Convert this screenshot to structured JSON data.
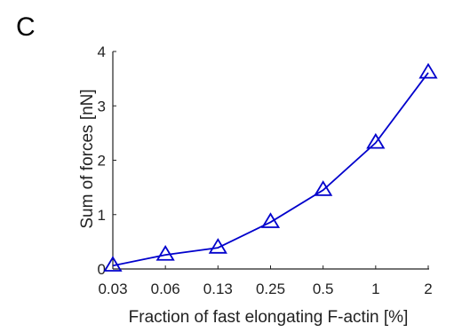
{
  "panel_label": "C",
  "chart_data": {
    "type": "line",
    "title": "",
    "xlabel": "Fraction of fast elongating F-actin [%]",
    "ylabel": "Sum of forces [nN]",
    "categories": [
      "0.03",
      "0.06",
      "0.13",
      "0.25",
      "0.5",
      "1",
      "2"
    ],
    "y_ticks": [
      "0",
      "1",
      "2",
      "3",
      "4"
    ],
    "ylim": [
      0,
      4
    ],
    "grid": false,
    "series": [
      {
        "values": [
          0.06,
          0.26,
          0.39,
          0.86,
          1.45,
          2.32,
          3.61
        ],
        "color": "#0000cc",
        "marker": "triangle"
      }
    ]
  }
}
